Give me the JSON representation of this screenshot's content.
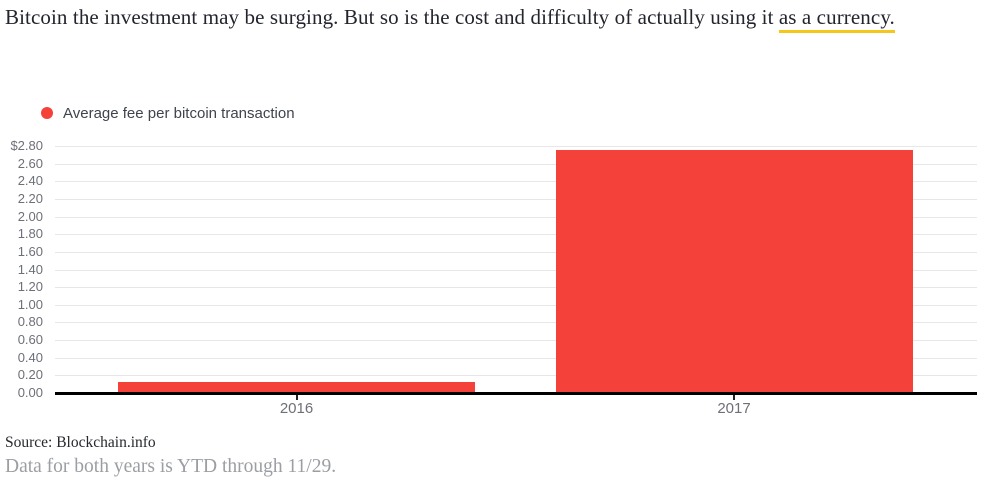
{
  "header": {
    "text_before_link": "Bitcoin the investment may be surging. But so is the cost and difficulty of actually using it ",
    "link_text": "as a currency.",
    "link_underline_color": "#f5c71a",
    "text_color": "#23252e"
  },
  "legend": {
    "marker_color": "#f4423a",
    "label": "Average fee per bitcoin transaction"
  },
  "chart_data": {
    "type": "bar",
    "title": "",
    "series_name": "Average fee per bitcoin transaction",
    "categories": [
      "2016",
      "2017"
    ],
    "values": [
      0.13,
      2.75
    ],
    "unit": "$",
    "xlabel": "",
    "ylabel": "",
    "ylim": [
      0,
      2.8
    ],
    "ytick_step": 0.2,
    "ytick_labels": [
      "$2.80",
      "2.60",
      "2.40",
      "2.20",
      "2.00",
      "1.80",
      "1.60",
      "1.40",
      "1.20",
      "1.00",
      "0.80",
      "0.60",
      "0.40",
      "0.20",
      "0.00"
    ],
    "bar_color": "#f4423a",
    "grid": true,
    "gridline_color": "#e7e7e7",
    "axis_line_color": "#000000",
    "legend_position": "top-left"
  },
  "footer": {
    "source": "Source: Blockchain.info",
    "note": "Data for both years is YTD through 11/29."
  }
}
